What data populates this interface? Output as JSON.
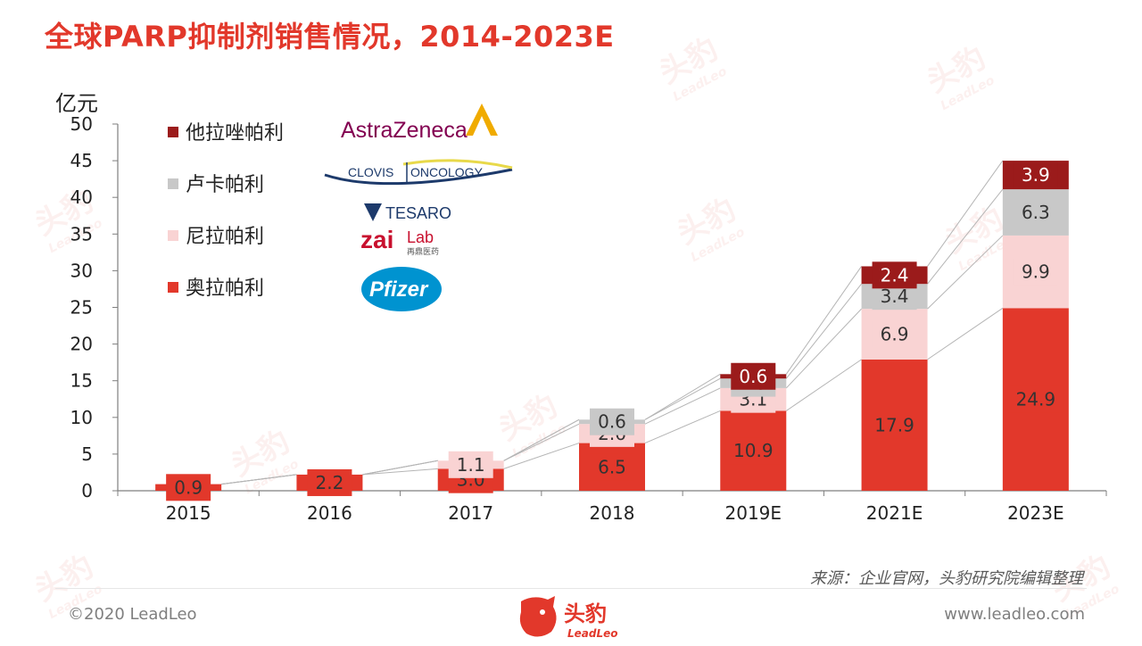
{
  "title": "全球PARP抑制剂销售情况，2014-2023E",
  "unit_label": "亿元",
  "source": "来源：企业官网，头豹研究院编辑整理",
  "copyright": "©2020 LeadLeo",
  "website": "www.leadleo.com",
  "brand": {
    "name": "头豹",
    "sub": "LeadLeo"
  },
  "watermark": {
    "text": "头豹",
    "sub": "LeadLeo"
  },
  "logos": {
    "astrazeneca": "AstraZeneca",
    "clovis": "CLOVIS",
    "clovis_2": "ONCOLOGY",
    "tesaro": "TESARO",
    "zailab_1": "zai",
    "zailab_2": "Lab",
    "zailab_cn": "再鼎医药",
    "pfizer": "Pfizer"
  },
  "colors": {
    "olaparib": "#e2382b",
    "niraparib": "#f9d3d3",
    "rucaparib": "#c8c8c8",
    "talazoparib": "#9b1b1b",
    "title": "#e2382b"
  },
  "chart_data": {
    "type": "bar",
    "stacked": true,
    "categories": [
      "2015",
      "2016",
      "2017",
      "2018",
      "2019E",
      "2021E",
      "2023E"
    ],
    "series": [
      {
        "name": "奥拉帕利",
        "values": [
          0.9,
          2.2,
          3.0,
          6.5,
          10.9,
          17.9,
          24.9
        ]
      },
      {
        "name": "尼拉帕利",
        "values": [
          0,
          0,
          1.1,
          2.6,
          3.1,
          6.9,
          9.9
        ]
      },
      {
        "name": "卢卡帕利",
        "values": [
          0,
          0,
          0,
          0.6,
          1.3,
          3.4,
          6.3
        ]
      },
      {
        "name": "他拉唑帕利",
        "values": [
          0,
          0,
          0,
          0,
          0.6,
          2.4,
          3.9
        ]
      }
    ],
    "ylim": [
      0,
      50
    ],
    "yticks": [
      0,
      5,
      10,
      15,
      20,
      25,
      30,
      35,
      40,
      45,
      50
    ],
    "ylabel": "亿元",
    "legend": [
      "他拉唑帕利",
      "卢卡帕利",
      "尼拉帕利",
      "奥拉帕利"
    ],
    "legend_position": "top-left"
  }
}
